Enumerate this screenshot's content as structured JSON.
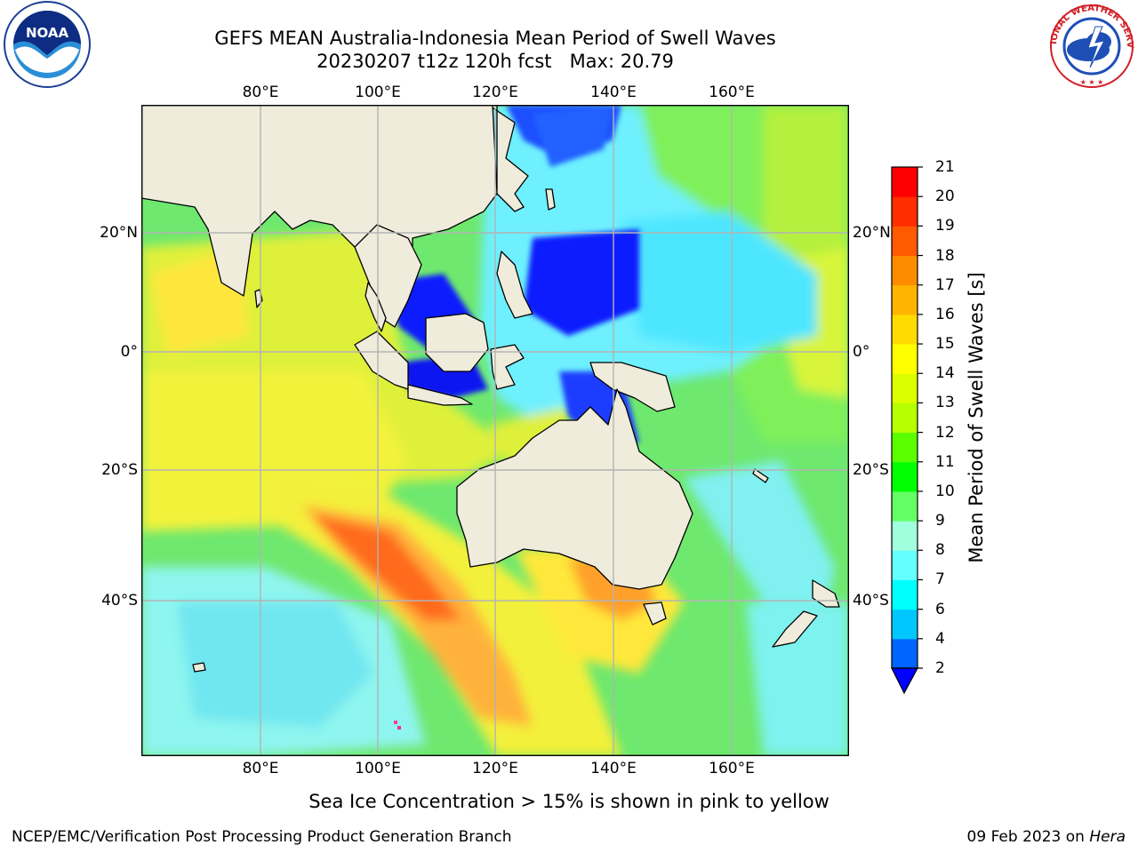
{
  "title": {
    "line1": "GEFS MEAN Australia-Indonesia Mean Period of Swell Waves",
    "line2": "20230207 t12z 120h fcst   Max: 20.79"
  },
  "map": {
    "longitude_labels": [
      "80°E",
      "100°E",
      "120°E",
      "140°E",
      "160°E"
    ],
    "latitude_labels": [
      "20°N",
      "0°",
      "20°S",
      "40°S"
    ],
    "land_color": "#efecdc",
    "coastline_color": "#000000",
    "gridline_color": "#b3b3b3"
  },
  "colorbar": {
    "label": "Mean Period of Swell Waves [s]",
    "ticks": [
      "2",
      "4",
      "6",
      "7",
      "8",
      "9",
      "10",
      "11",
      "12",
      "13",
      "14",
      "15",
      "16",
      "17",
      "18",
      "19",
      "20",
      "21"
    ],
    "colors": [
      "#0000ff",
      "#0064ff",
      "#00c8ff",
      "#00ffff",
      "#64ffff",
      "#a0ffdc",
      "#64ff64",
      "#00ff00",
      "#5aff00",
      "#b4ff00",
      "#dcff00",
      "#ffff00",
      "#ffdc00",
      "#ffb400",
      "#ff8c00",
      "#ff5a00",
      "#ff2d00",
      "#ff0000"
    ],
    "extend_color": "#0000ff"
  },
  "footnote": "Sea Ice Concentration > 15% is shown in pink to yellow",
  "credits": {
    "left": "NCEP/EMC/Verification Post Processing Product Generation Branch",
    "right_date": "09 Feb 2023 on ",
    "right_machine": "Hera"
  },
  "logos": {
    "noaa_text": "NOAA",
    "nws_text": "NATIONAL WEATHER SERVICE"
  }
}
